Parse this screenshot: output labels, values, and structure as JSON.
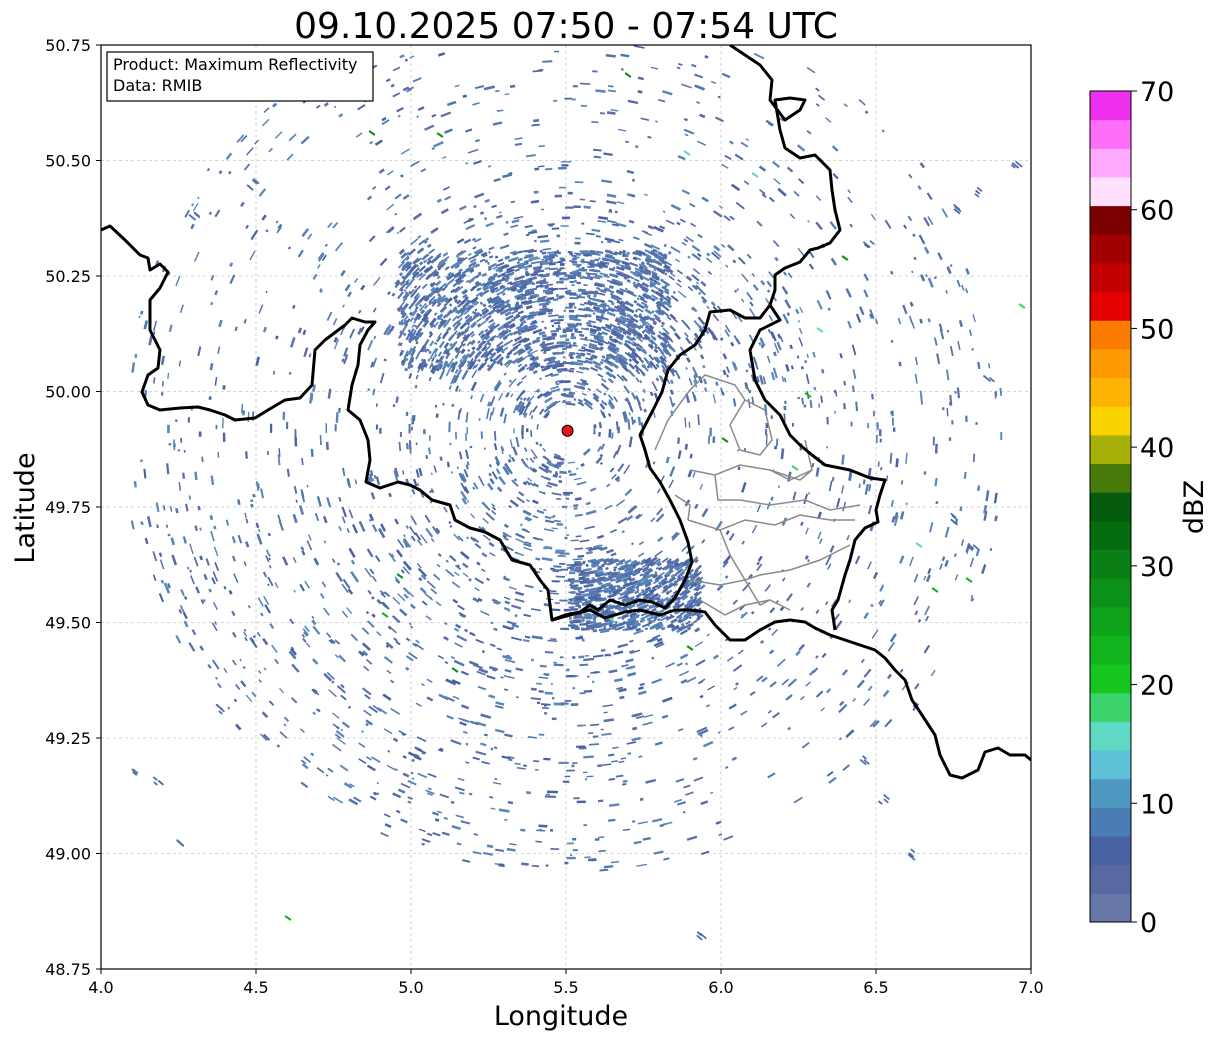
{
  "title": "09.10.2025 07:50 - 07:54 UTC",
  "info_box": {
    "line1": "Product: Maximum Reflectivity",
    "line2": "Data: RMIB"
  },
  "map": {
    "xlabel": "Longitude",
    "ylabel": "Latitude",
    "xlim": [
      4.0,
      7.0
    ],
    "ylim": [
      48.75,
      50.75
    ],
    "x_ticks": [
      "4.0",
      "4.5",
      "5.0",
      "5.5",
      "6.0",
      "6.5",
      "7.0"
    ],
    "y_ticks": [
      "48.75",
      "49.00",
      "49.25",
      "49.50",
      "49.75",
      "50.00",
      "50.25",
      "50.50",
      "50.75"
    ],
    "grid": true,
    "radar_site": {
      "lon": 5.505,
      "lat": 49.915,
      "color": "#e8141c"
    }
  },
  "colorbar": {
    "label": "dBZ",
    "range": [
      0,
      70
    ],
    "ticks": [
      "0",
      "10",
      "20",
      "30",
      "40",
      "50",
      "60",
      "70"
    ],
    "colors": [
      "#6676a6",
      "#5868a0",
      "#4a63a2",
      "#4a7db3",
      "#4f98c2",
      "#5ec1d8",
      "#5fd8c4",
      "#3bd46c",
      "#15c61f",
      "#12b51e",
      "#0ea31b",
      "#0b9117",
      "#097f15",
      "#066c10",
      "#045a0d",
      "#487a0a",
      "#a7b008",
      "#fbd400",
      "#fcb400",
      "#fc9a00",
      "#fc7c00",
      "#e30000",
      "#c20000",
      "#a20000",
      "#7c0000",
      "#ffe0ff",
      "#ffaaff",
      "#ff6ef9",
      "#ee30ee"
    ]
  }
}
